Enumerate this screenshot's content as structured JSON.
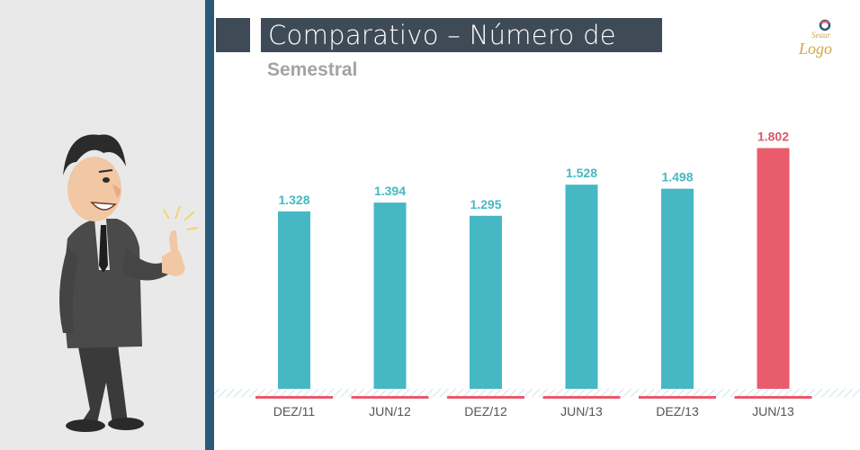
{
  "header": {
    "title": "Comparativo – Número de ações",
    "subtitle": "Semestral",
    "logo_line1": "Seaur",
    "logo_line2": "Logo"
  },
  "colors": {
    "panel_bg": "#e9e9e9",
    "divider": "#2b5a78",
    "title_bg": "#3e4b57",
    "bar_teal": "#45b8c4",
    "bar_red": "#e85c6c",
    "label_teal": "#45b8c4",
    "label_red": "#d9596a"
  },
  "chart_data": {
    "type": "bar",
    "categories": [
      "DEZ/11",
      "JUN/12",
      "DEZ/12",
      "JUN/13",
      "DEZ/13",
      "JUN/13"
    ],
    "values": [
      1328,
      1394,
      1295,
      1528,
      1498,
      1802
    ],
    "value_labels": [
      "1.328",
      "1.394",
      "1.295",
      "1.528",
      "1.498",
      "1.802"
    ],
    "highlight_index": 5,
    "ylim": [
      0,
      1900
    ],
    "grid": false,
    "legend": "none",
    "title": "",
    "xlabel": "",
    "ylabel": ""
  }
}
